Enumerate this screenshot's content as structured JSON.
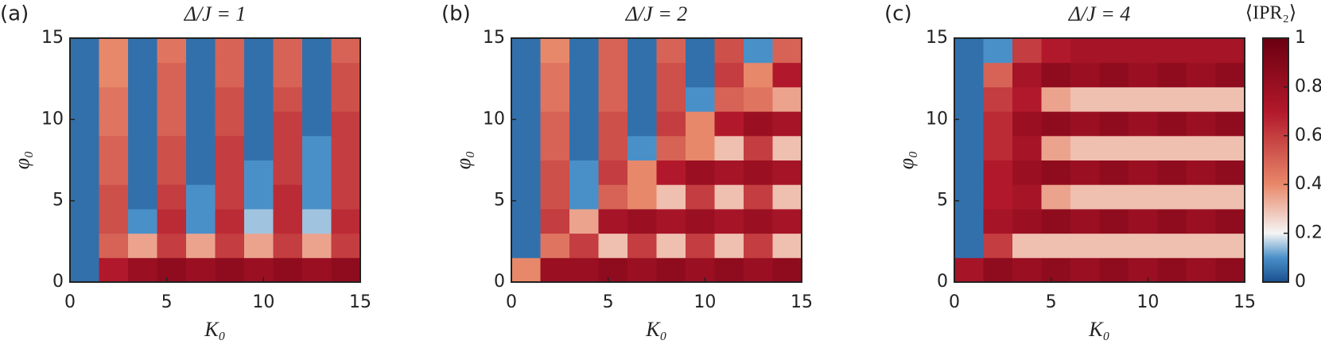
{
  "chart_data": [
    {
      "type": "heatmap",
      "panel": "(a)",
      "title": "Δ/J = 1",
      "x_label": "K₀",
      "y_label": "φ₀",
      "x_edges": [
        0,
        1.5,
        3,
        4.5,
        6,
        7.5,
        9,
        10.5,
        12,
        13.5,
        15
      ],
      "y_edges": [
        0,
        1.5,
        3,
        4.5,
        6,
        7.5,
        9,
        10.5,
        12,
        13.5,
        15
      ],
      "xlim": [
        0,
        15
      ],
      "ylim": [
        0,
        15
      ],
      "xticks": [
        0,
        5,
        10,
        15
      ],
      "yticks": [
        0,
        5,
        10,
        15
      ],
      "z": [
        [
          0.05,
          0.7,
          0.8,
          0.85,
          0.8,
          0.85,
          0.8,
          0.85,
          0.8,
          0.85
        ],
        [
          0.05,
          0.5,
          0.35,
          0.6,
          0.35,
          0.6,
          0.35,
          0.6,
          0.35,
          0.6
        ],
        [
          0.05,
          0.55,
          0.1,
          0.65,
          0.1,
          0.65,
          0.15,
          0.65,
          0.15,
          0.65
        ],
        [
          0.05,
          0.55,
          0.05,
          0.6,
          0.1,
          0.6,
          0.1,
          0.65,
          0.1,
          0.6
        ],
        [
          0.05,
          0.5,
          0.05,
          0.55,
          0.05,
          0.6,
          0.1,
          0.6,
          0.1,
          0.6
        ],
        [
          0.05,
          0.5,
          0.05,
          0.55,
          0.05,
          0.6,
          0.05,
          0.6,
          0.1,
          0.6
        ],
        [
          0.05,
          0.45,
          0.05,
          0.5,
          0.05,
          0.55,
          0.05,
          0.6,
          0.05,
          0.6
        ],
        [
          0.05,
          0.45,
          0.05,
          0.5,
          0.05,
          0.55,
          0.05,
          0.55,
          0.05,
          0.55
        ],
        [
          0.05,
          0.4,
          0.05,
          0.5,
          0.05,
          0.5,
          0.05,
          0.5,
          0.05,
          0.55
        ],
        [
          0.05,
          0.4,
          0.05,
          0.45,
          0.05,
          0.5,
          0.05,
          0.5,
          0.05,
          0.5
        ]
      ]
    },
    {
      "type": "heatmap",
      "panel": "(b)",
      "title": "Δ/J = 2",
      "x_label": "K₀",
      "y_label": "φ₀",
      "x_edges": [
        0,
        1.5,
        3,
        4.5,
        6,
        7.5,
        9,
        10.5,
        12,
        13.5,
        15
      ],
      "y_edges": [
        0,
        1.5,
        3,
        4.5,
        6,
        7.5,
        9,
        10.5,
        12,
        13.5,
        15
      ],
      "xlim": [
        0,
        15
      ],
      "ylim": [
        0,
        15
      ],
      "xticks": [
        0,
        5,
        10,
        15
      ],
      "yticks": [
        0,
        5,
        10,
        15
      ],
      "z": [
        [
          0.4,
          0.8,
          0.8,
          0.85,
          0.8,
          0.85,
          0.8,
          0.85,
          0.8,
          0.85
        ],
        [
          0.05,
          0.45,
          0.6,
          0.3,
          0.6,
          0.3,
          0.6,
          0.3,
          0.6,
          0.3
        ],
        [
          0.05,
          0.6,
          0.35,
          0.75,
          0.8,
          0.75,
          0.8,
          0.75,
          0.8,
          0.75
        ],
        [
          0.05,
          0.55,
          0.1,
          0.5,
          0.4,
          0.3,
          0.6,
          0.3,
          0.6,
          0.3
        ],
        [
          0.05,
          0.55,
          0.1,
          0.6,
          0.4,
          0.7,
          0.8,
          0.75,
          0.8,
          0.75
        ],
        [
          0.05,
          0.5,
          0.05,
          0.55,
          0.1,
          0.5,
          0.4,
          0.3,
          0.6,
          0.3
        ],
        [
          0.05,
          0.5,
          0.05,
          0.55,
          0.05,
          0.6,
          0.4,
          0.7,
          0.8,
          0.75
        ],
        [
          0.05,
          0.45,
          0.05,
          0.5,
          0.05,
          0.55,
          0.1,
          0.5,
          0.45,
          0.35
        ],
        [
          0.05,
          0.45,
          0.05,
          0.5,
          0.05,
          0.55,
          0.05,
          0.6,
          0.4,
          0.7
        ],
        [
          0.05,
          0.4,
          0.05,
          0.5,
          0.05,
          0.5,
          0.05,
          0.55,
          0.1,
          0.5
        ]
      ]
    },
    {
      "type": "heatmap",
      "panel": "(c)",
      "title": "Δ/J = 4",
      "x_label": "K₀",
      "y_label": "φ₀",
      "x_edges": [
        0,
        1.5,
        3,
        4.5,
        6,
        7.5,
        9,
        10.5,
        12,
        13.5,
        15
      ],
      "y_edges": [
        0,
        1.5,
        3,
        4.5,
        6,
        7.5,
        9,
        10.5,
        12,
        13.5,
        15
      ],
      "xlim": [
        0,
        15
      ],
      "ylim": [
        0,
        15
      ],
      "xticks": [
        0,
        5,
        10,
        15
      ],
      "yticks": [
        0,
        5,
        10,
        15
      ],
      "z": [
        [
          0.75,
          0.85,
          0.8,
          0.85,
          0.8,
          0.85,
          0.8,
          0.85,
          0.8,
          0.85
        ],
        [
          0.05,
          0.6,
          0.3,
          0.3,
          0.3,
          0.3,
          0.3,
          0.3,
          0.3,
          0.3
        ],
        [
          0.05,
          0.75,
          0.8,
          0.85,
          0.8,
          0.85,
          0.8,
          0.85,
          0.8,
          0.85
        ],
        [
          0.05,
          0.7,
          0.75,
          0.35,
          0.3,
          0.3,
          0.3,
          0.3,
          0.3,
          0.3
        ],
        [
          0.05,
          0.7,
          0.8,
          0.85,
          0.8,
          0.85,
          0.8,
          0.85,
          0.8,
          0.85
        ],
        [
          0.05,
          0.65,
          0.75,
          0.35,
          0.3,
          0.3,
          0.3,
          0.3,
          0.3,
          0.3
        ],
        [
          0.05,
          0.65,
          0.8,
          0.85,
          0.8,
          0.85,
          0.8,
          0.85,
          0.8,
          0.85
        ],
        [
          0.05,
          0.6,
          0.7,
          0.35,
          0.3,
          0.3,
          0.3,
          0.3,
          0.3,
          0.3
        ],
        [
          0.05,
          0.5,
          0.75,
          0.85,
          0.8,
          0.85,
          0.8,
          0.85,
          0.8,
          0.85
        ],
        [
          0.05,
          0.1,
          0.6,
          0.7,
          0.75,
          0.75,
          0.75,
          0.75,
          0.75,
          0.75
        ]
      ],
      "colorbar_title": "⟨IPR₂⟩",
      "clim": [
        0,
        1
      ],
      "cticks": [
        0,
        0.2,
        0.4,
        0.6,
        0.8,
        1
      ],
      "colormap": [
        {
          "value": 0,
          "color": "#1a4f8f"
        },
        {
          "value": 0.1,
          "color": "#4a90c8"
        },
        {
          "value": 0.2,
          "color": "#f5f5f5"
        },
        {
          "value": 0.4,
          "color": "#e8886a"
        },
        {
          "value": 0.7,
          "color": "#b2182b"
        },
        {
          "value": 1,
          "color": "#6b0010"
        }
      ]
    }
  ]
}
